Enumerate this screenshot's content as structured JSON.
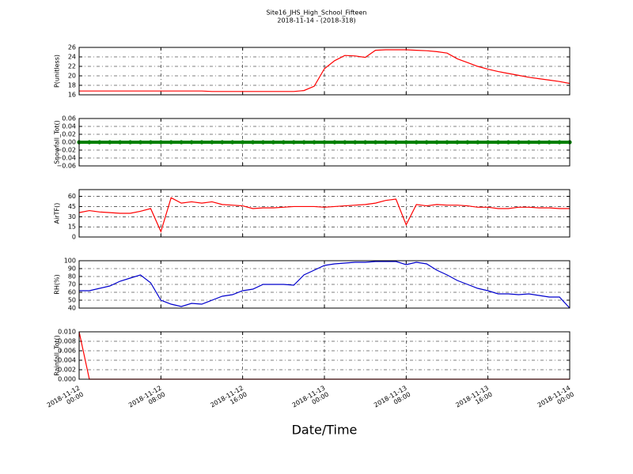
{
  "chart_data": {
    "type": "line",
    "title": "Site16_JHS_High_School_Fifteen",
    "subtitle": "2018-11-14 - (2018-318)",
    "xlabel": "Date/Time",
    "xlim": [
      "2018-11-12 00:00",
      "2018-11-14 00:00"
    ],
    "xticks": [
      "2018-11-12 00:00",
      "2018-11-12 08:00",
      "2018-11-12 16:00",
      "2018-11-13 00:00",
      "2018-11-13 08:00",
      "2018-11-13 16:00",
      "2018-11-14 00:00"
    ],
    "grid": true,
    "x": [
      "2018-11-12 00:00",
      "2018-11-12 01:00",
      "2018-11-12 02:00",
      "2018-11-12 03:00",
      "2018-11-12 04:00",
      "2018-11-12 05:00",
      "2018-11-12 06:00",
      "2018-11-12 07:00",
      "2018-11-12 08:00",
      "2018-11-12 09:00",
      "2018-11-12 10:00",
      "2018-11-12 11:00",
      "2018-11-12 12:00",
      "2018-11-12 13:00",
      "2018-11-12 14:00",
      "2018-11-12 15:00",
      "2018-11-12 16:00",
      "2018-11-12 17:00",
      "2018-11-12 18:00",
      "2018-11-12 19:00",
      "2018-11-12 20:00",
      "2018-11-12 21:00",
      "2018-11-12 22:00",
      "2018-11-12 23:00",
      "2018-11-13 00:00",
      "2018-11-13 01:00",
      "2018-11-13 02:00",
      "2018-11-13 03:00",
      "2018-11-13 04:00",
      "2018-11-13 05:00",
      "2018-11-13 06:00",
      "2018-11-13 07:00",
      "2018-11-13 08:00",
      "2018-11-13 09:00",
      "2018-11-13 10:00",
      "2018-11-13 11:00",
      "2018-11-13 12:00",
      "2018-11-13 13:00",
      "2018-11-13 14:00",
      "2018-11-13 15:00",
      "2018-11-13 16:00",
      "2018-11-13 17:00",
      "2018-11-13 18:00",
      "2018-11-13 19:00",
      "2018-11-13 20:00",
      "2018-11-13 21:00",
      "2018-11-13 22:00",
      "2018-11-13 23:00",
      "2018-11-14 00:00"
    ],
    "panels": [
      {
        "ylabel": "P(unitless)",
        "color": "#ff0000",
        "marker": false,
        "ylim": [
          16,
          26
        ],
        "yticks": [
          16,
          18,
          20,
          22,
          24,
          26
        ],
        "values": [
          16.8,
          16.8,
          16.8,
          16.8,
          16.8,
          16.8,
          16.8,
          16.8,
          16.8,
          16.8,
          16.8,
          16.8,
          16.8,
          16.7,
          16.7,
          16.7,
          16.7,
          16.7,
          16.7,
          16.7,
          16.7,
          16.7,
          16.9,
          17.8,
          21.5,
          23.2,
          24.3,
          24.2,
          23.9,
          25.4,
          25.5,
          25.5,
          25.5,
          25.4,
          25.3,
          25.1,
          24.8,
          23.6,
          22.8,
          22.0,
          21.4,
          20.9,
          20.5,
          20.1,
          19.7,
          19.4,
          19.1,
          18.8,
          18.4
        ]
      },
      {
        "ylabel": "Snowfall_Tot()",
        "color": "#008000",
        "marker": true,
        "ylim": [
          -0.06,
          0.06
        ],
        "yticks": [
          {
            "value": -0.06,
            "label": "−0.06"
          },
          {
            "value": -0.04,
            "label": "−0.04"
          },
          {
            "value": -0.02,
            "label": "−0.02"
          },
          {
            "value": 0,
            "label": "0.00"
          },
          {
            "value": 0.02,
            "label": "0.02"
          },
          {
            "value": 0.04,
            "label": "0.04"
          },
          {
            "value": 0.06,
            "label": "0.06"
          }
        ],
        "values": [
          0,
          0,
          0,
          0,
          0,
          0,
          0,
          0,
          0,
          0,
          0,
          0,
          0,
          0,
          0,
          0,
          0,
          0,
          0,
          0,
          0,
          0,
          0,
          0,
          0,
          0,
          0,
          0,
          0,
          0,
          0,
          0,
          0,
          0,
          0,
          0,
          0,
          0,
          0,
          0,
          0,
          0,
          0,
          0,
          0,
          0,
          0,
          0,
          0
        ]
      },
      {
        "ylabel": "AirTF()",
        "color": "#ff0000",
        "marker": false,
        "ylim": [
          0,
          70
        ],
        "yticks": [
          0,
          15,
          30,
          45,
          60
        ],
        "values": [
          36,
          39,
          37,
          36,
          35,
          35,
          38,
          42,
          8,
          58,
          50,
          52,
          50,
          52,
          48,
          47,
          46,
          42,
          43,
          43,
          44,
          45,
          45,
          45,
          44,
          45,
          46,
          47,
          48,
          50,
          54,
          56,
          18,
          48,
          46,
          48,
          47,
          47,
          46,
          44,
          44,
          42,
          42,
          44,
          44,
          43,
          43,
          42,
          42
        ]
      },
      {
        "ylabel": "RH(%)",
        "color": "#0000cc",
        "marker": false,
        "ylim": [
          40,
          100
        ],
        "yticks": [
          40,
          50,
          60,
          70,
          80,
          90,
          100
        ],
        "values": [
          62,
          62,
          65,
          68,
          74,
          78,
          82,
          72,
          50,
          45,
          42,
          46,
          45,
          50,
          55,
          57,
          62,
          64,
          70,
          70,
          70,
          69,
          82,
          88,
          94,
          96,
          97,
          98,
          98,
          99,
          99,
          99,
          95,
          98,
          96,
          88,
          82,
          75,
          70,
          65,
          62,
          58,
          58,
          57,
          58,
          56,
          54,
          54,
          40
        ]
      },
      {
        "ylabel": "Rainfall_Tot()",
        "color": "#ff0000",
        "marker": false,
        "ylim": [
          0,
          0.01
        ],
        "yticks": [
          {
            "value": 0,
            "label": "0.000"
          },
          {
            "value": 0.002,
            "label": "0.002"
          },
          {
            "value": 0.004,
            "label": "0.004"
          },
          {
            "value": 0.006,
            "label": "0.006"
          },
          {
            "value": 0.008,
            "label": "0.008"
          },
          {
            "value": 0.01,
            "label": "0.010"
          }
        ],
        "values": [
          0.01,
          0,
          0,
          0,
          0,
          0,
          0,
          0,
          0,
          0,
          0,
          0,
          0,
          0,
          0,
          0,
          0,
          0,
          0,
          0,
          0,
          0,
          0,
          0,
          0,
          0,
          0,
          0,
          0,
          0,
          0,
          0,
          0,
          0,
          0,
          0,
          0,
          0,
          0,
          0,
          0,
          0,
          0,
          0,
          0,
          0,
          0,
          0,
          0
        ]
      }
    ]
  }
}
